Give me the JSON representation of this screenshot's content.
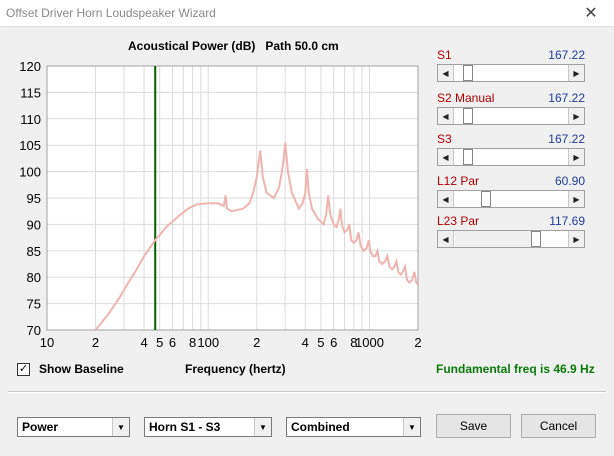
{
  "window": {
    "title": "Offset Driver Horn Loudspeaker Wizard",
    "close_glyph": "✕"
  },
  "chart_header": {
    "title": "Acoustical Power (dB)",
    "path": "Path 50.0 cm"
  },
  "chart_data": {
    "type": "line",
    "title": "Acoustical Power (dB)",
    "xlabel": "Frequency (hertz)",
    "ylabel": "",
    "x_scale": "log",
    "xlim": [
      10,
      2000
    ],
    "ylim": [
      70,
      120
    ],
    "grid": true,
    "y_ticks": [
      70,
      75,
      80,
      85,
      90,
      95,
      100,
      105,
      110,
      115,
      120
    ],
    "x_ticks": [
      {
        "value": 10,
        "label": "10"
      },
      {
        "value": 20,
        "label": "2"
      },
      {
        "value": 40,
        "label": "4"
      },
      {
        "value": 50,
        "label": "5"
      },
      {
        "value": 60,
        "label": "6"
      },
      {
        "value": 80,
        "label": "8"
      },
      {
        "value": 100,
        "label": "100"
      },
      {
        "value": 200,
        "label": "2"
      },
      {
        "value": 400,
        "label": "4"
      },
      {
        "value": 500,
        "label": "5"
      },
      {
        "value": 600,
        "label": "6"
      },
      {
        "value": 800,
        "label": "8"
      },
      {
        "value": 1000,
        "label": "1000"
      },
      {
        "value": 2000,
        "label": "2"
      }
    ],
    "marker_line": {
      "x": 46.9,
      "color": "#006400"
    },
    "series": [
      {
        "color": "#f0b4b0",
        "points": [
          [
            20,
            70
          ],
          [
            24,
            73
          ],
          [
            28,
            76
          ],
          [
            32,
            79
          ],
          [
            36,
            81.5
          ],
          [
            40,
            84
          ],
          [
            46.9,
            87
          ],
          [
            55,
            89.5
          ],
          [
            65,
            91.5
          ],
          [
            75,
            93
          ],
          [
            85,
            93.8
          ],
          [
            100,
            94
          ],
          [
            115,
            94
          ],
          [
            125,
            93.5
          ],
          [
            128,
            95.5
          ],
          [
            131,
            93
          ],
          [
            140,
            92.5
          ],
          [
            165,
            93
          ],
          [
            180,
            94
          ],
          [
            190,
            96
          ],
          [
            200,
            99
          ],
          [
            210,
            104
          ],
          [
            218,
            99
          ],
          [
            230,
            96
          ],
          [
            255,
            95
          ],
          [
            275,
            97
          ],
          [
            290,
            101
          ],
          [
            300,
            105.5
          ],
          [
            312,
            100
          ],
          [
            330,
            96
          ],
          [
            365,
            93
          ],
          [
            385,
            94
          ],
          [
            400,
            96
          ],
          [
            410,
            100.5
          ],
          [
            420,
            96
          ],
          [
            440,
            93
          ],
          [
            480,
            91
          ],
          [
            520,
            90
          ],
          [
            540,
            92
          ],
          [
            555,
            95.5
          ],
          [
            570,
            92
          ],
          [
            600,
            90
          ],
          [
            625,
            89.5
          ],
          [
            645,
            91
          ],
          [
            660,
            93
          ],
          [
            675,
            90
          ],
          [
            700,
            88.5
          ],
          [
            730,
            89
          ],
          [
            750,
            90
          ],
          [
            770,
            87
          ],
          [
            800,
            86.5
          ],
          [
            830,
            87
          ],
          [
            855,
            88.5
          ],
          [
            880,
            86
          ],
          [
            920,
            85
          ],
          [
            960,
            85.5
          ],
          [
            990,
            87
          ],
          [
            1010,
            85
          ],
          [
            1050,
            84
          ],
          [
            1090,
            84
          ],
          [
            1120,
            85
          ],
          [
            1150,
            83
          ],
          [
            1200,
            82.5
          ],
          [
            1250,
            83
          ],
          [
            1290,
            84
          ],
          [
            1330,
            82
          ],
          [
            1380,
            81.5
          ],
          [
            1430,
            82
          ],
          [
            1470,
            83
          ],
          [
            1510,
            81
          ],
          [
            1560,
            80.5
          ],
          [
            1610,
            81
          ],
          [
            1660,
            82
          ],
          [
            1710,
            79.5
          ],
          [
            1770,
            79
          ],
          [
            1840,
            79.5
          ],
          [
            1900,
            81
          ],
          [
            1950,
            79
          ],
          [
            2000,
            78.5
          ]
        ]
      }
    ]
  },
  "sliders": [
    {
      "label": "S1",
      "value": "167.22",
      "position": 0.12
    },
    {
      "label": "S2  Manual",
      "value": "167.22",
      "position": 0.12
    },
    {
      "label": "S3",
      "value": "167.22",
      "position": 0.12
    },
    {
      "label": "L12  Par",
      "value": "60.90",
      "position": 0.28
    },
    {
      "label": "L23  Par",
      "value": "117.69",
      "position": 0.72
    }
  ],
  "slider_glyphs": {
    "left": "◀",
    "right": "▶"
  },
  "baseline": {
    "label": "Show Baseline",
    "checked": true,
    "check_glyph": "✓"
  },
  "freq_label": "Frequency (hertz)",
  "fundamental": "Fundamental freq is 46.9 Hz",
  "combos": [
    {
      "id": "type",
      "value": "Power"
    },
    {
      "id": "horn",
      "value": "Horn S1 - S3"
    },
    {
      "id": "mode",
      "value": "Combined"
    }
  ],
  "combo_arrow": "▼",
  "buttons": {
    "save": "Save",
    "cancel": "Cancel"
  }
}
